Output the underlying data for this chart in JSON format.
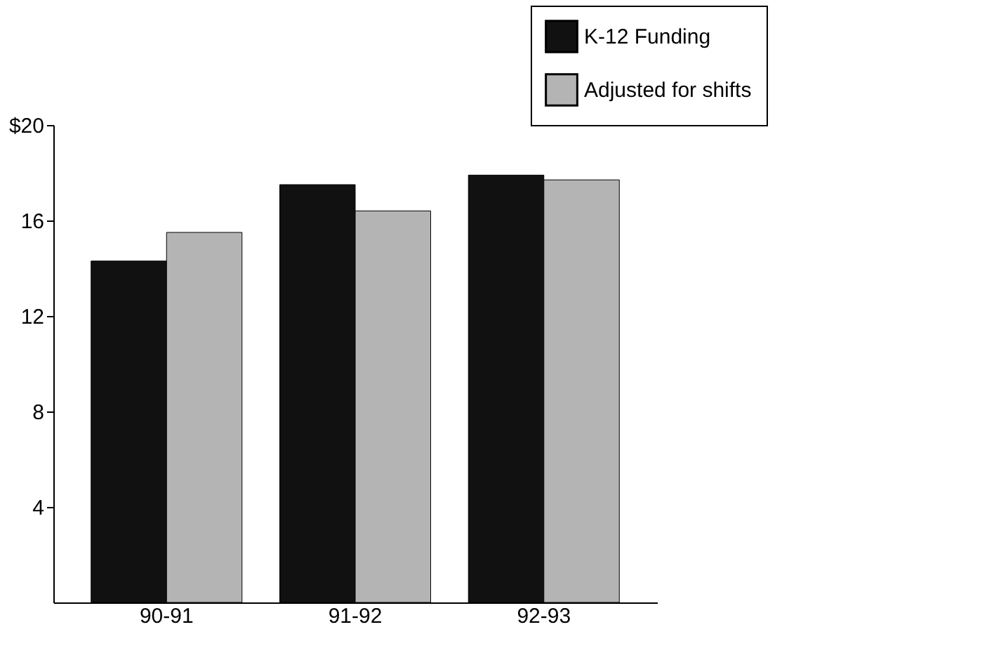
{
  "chart_data": {
    "type": "bar",
    "categories": [
      "90-91",
      "91-92",
      "92-93"
    ],
    "series": [
      {
        "name": "K-12 Funding",
        "color": "#111111",
        "values": [
          14.3,
          17.5,
          17.9
        ]
      },
      {
        "name": "Adjusted for shifts",
        "color": "#b4b4b4",
        "values": [
          15.5,
          16.4,
          17.7
        ]
      }
    ],
    "ylim": [
      0,
      20
    ],
    "yticks": [
      {
        "value": 4,
        "label": "4"
      },
      {
        "value": 8,
        "label": "8"
      },
      {
        "value": 12,
        "label": "12"
      },
      {
        "value": 16,
        "label": "16"
      },
      {
        "value": 20,
        "label": "$20"
      }
    ],
    "grid": false,
    "legend": "top right"
  }
}
